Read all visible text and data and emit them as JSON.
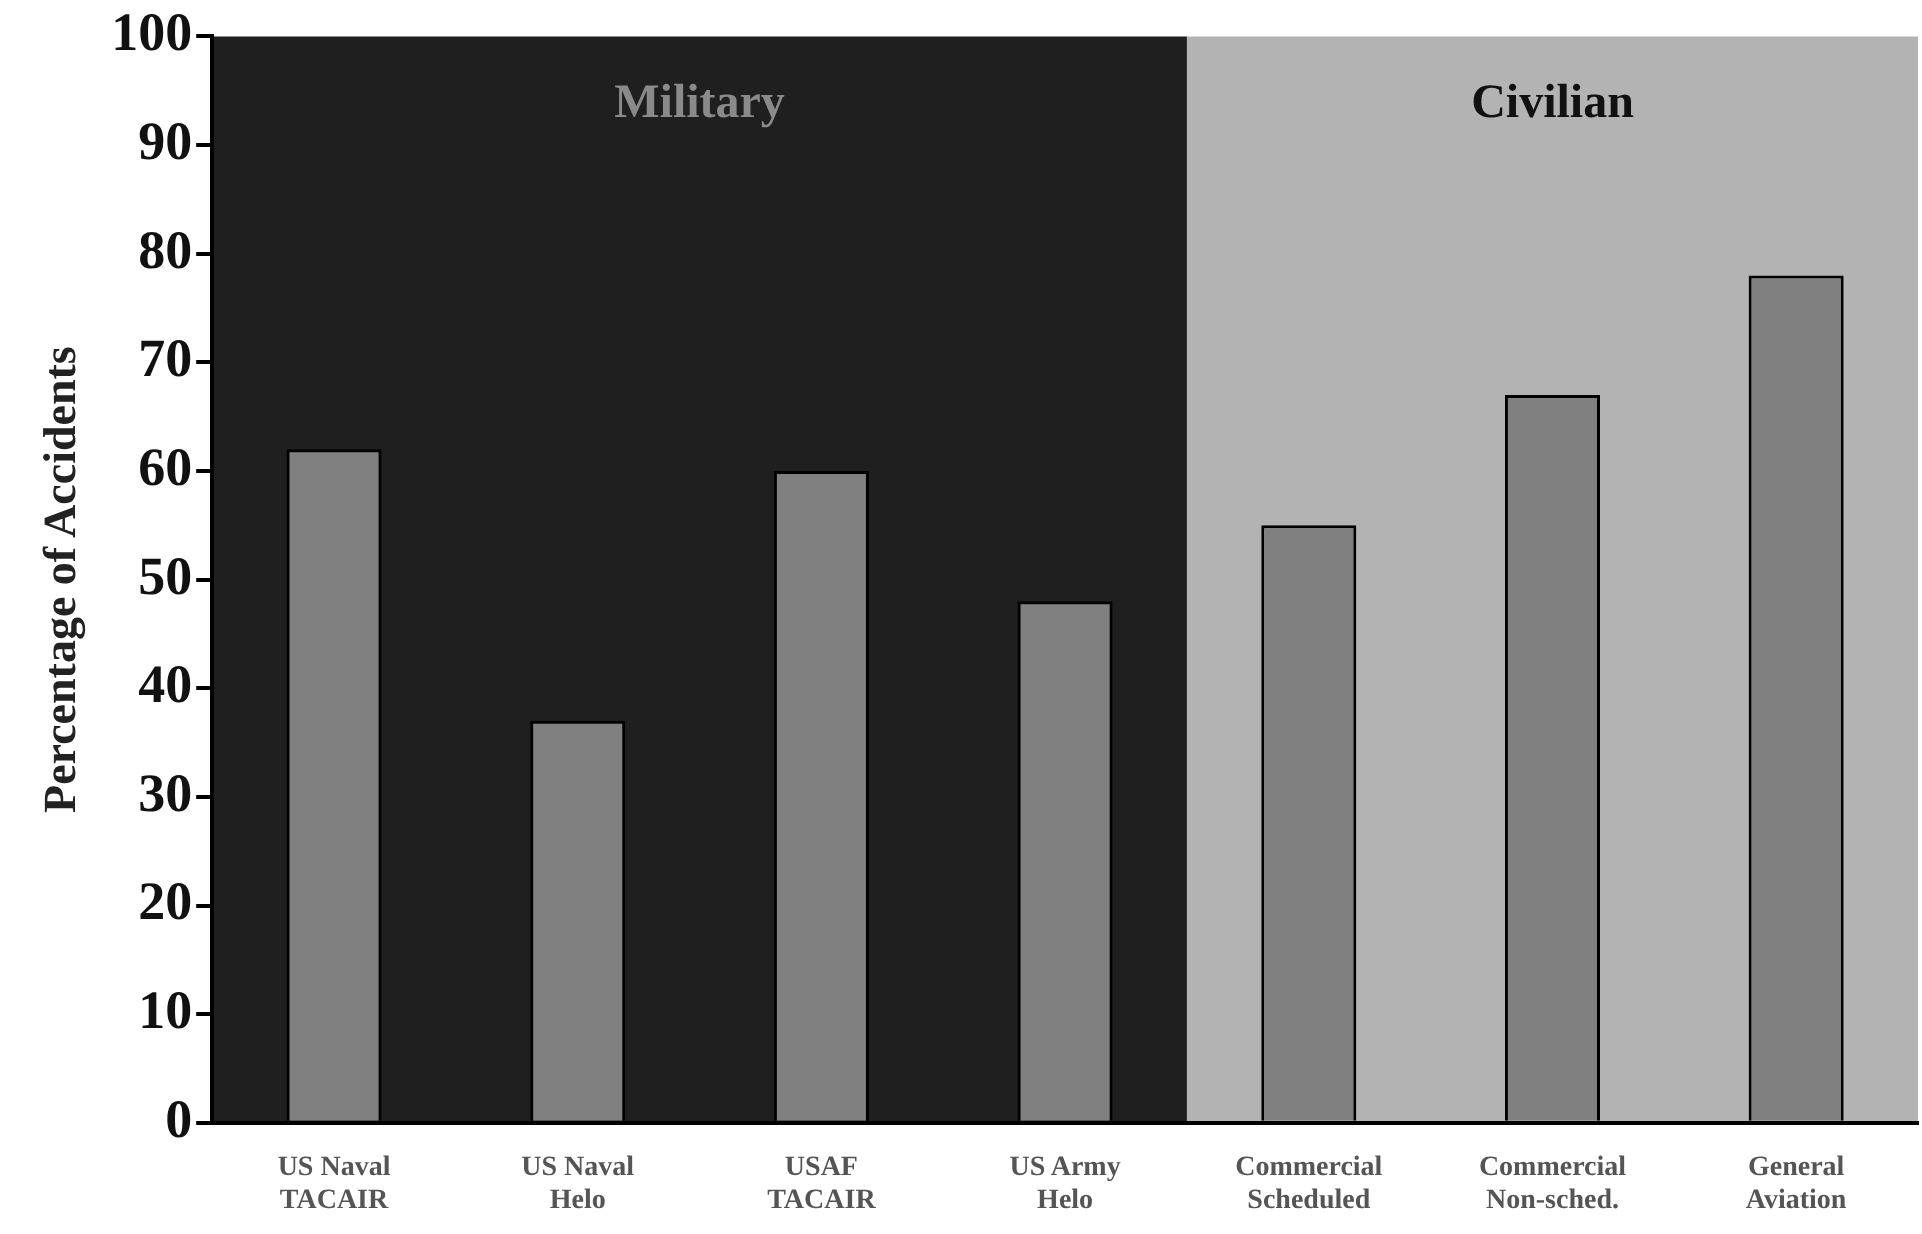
{
  "chart_data": {
    "type": "bar",
    "categories": [
      "US Naval\nTACAIR",
      "US Naval\nHelo",
      "USAF\nTACAIR",
      "US Army\nHelo",
      "Commercial\nScheduled",
      "Commercial\nNon-sched.",
      "General\nAviation"
    ],
    "values": [
      62,
      37,
      60,
      48,
      55,
      67,
      78
    ],
    "color": "#808080",
    "ylabel": "Percentage of Accidents",
    "ylim": [
      0,
      100
    ],
    "yticks": [
      0,
      10,
      20,
      30,
      40,
      50,
      60,
      70,
      80,
      90,
      100
    ],
    "grid": false,
    "legend": false,
    "bands": [
      {
        "axis": "x",
        "from": "US Naval\nTACAIR",
        "to": "US Army\nHelo",
        "label": "Military",
        "color": "#1f1f1f"
      },
      {
        "axis": "x",
        "from": "Commercial\nScheduled",
        "to": "General\nAviation",
        "label": "Civilian",
        "color": "#b3b3b3"
      }
    ]
  }
}
